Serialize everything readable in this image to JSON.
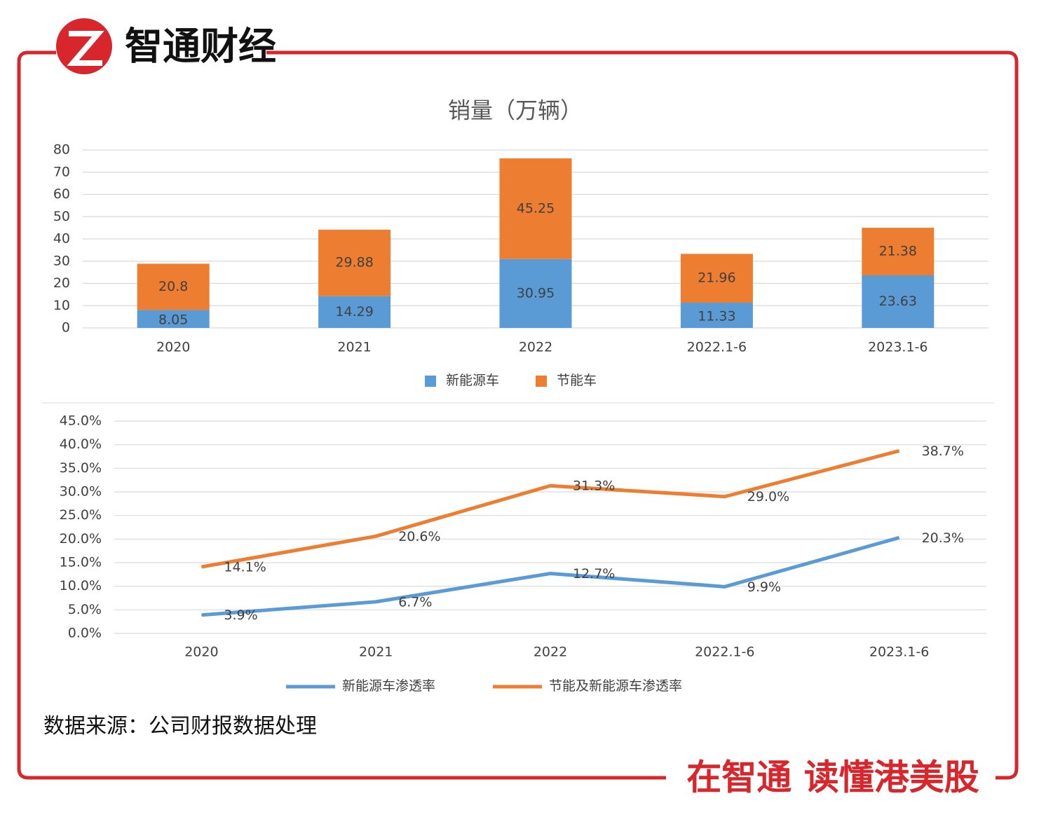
{
  "brand": "智通财经",
  "source": "数据来源：公司财报数据处理",
  "slogan": "在智通 读懂港美股",
  "chart_data": [
    {
      "type": "bar",
      "stacked": true,
      "title": "销量（万辆）",
      "categories": [
        "2020",
        "2021",
        "2022",
        "2022.1-6",
        "2023.1-6"
      ],
      "series": [
        {
          "name": "新能源车",
          "color": "#5b9bd5",
          "values": [
            8.05,
            14.29,
            30.95,
            11.33,
            23.63
          ]
        },
        {
          "name": "节能车",
          "color": "#ed7d31",
          "values": [
            20.8,
            29.88,
            45.25,
            21.96,
            21.38
          ]
        }
      ],
      "ylim": [
        0,
        80
      ],
      "yticks": [
        0,
        10,
        20,
        30,
        40,
        50,
        60,
        70,
        80
      ],
      "grid": true
    },
    {
      "type": "line",
      "categories": [
        "2020",
        "2021",
        "2022",
        "2022.1-6",
        "2023.1-6"
      ],
      "series": [
        {
          "name": "新能源车渗透率",
          "color": "#5b9bd5",
          "values": [
            3.9,
            6.7,
            12.7,
            9.9,
            20.3
          ],
          "value_labels": [
            "3.9%",
            "6.7%",
            "12.7%",
            "9.9%",
            "20.3%"
          ]
        },
        {
          "name": "节能及新能源车渗透率",
          "color": "#ed7d31",
          "values": [
            14.1,
            20.6,
            31.3,
            29.0,
            38.7
          ],
          "value_labels": [
            "14.1%",
            "20.6%",
            "31.3%",
            "29.0%",
            "38.7%"
          ]
        }
      ],
      "ylim": [
        0,
        45
      ],
      "yticks": [
        {
          "value": 0,
          "label": "0.0%"
        },
        {
          "value": 5,
          "label": "5.0%"
        },
        {
          "value": 10,
          "label": "10.0%"
        },
        {
          "value": 15,
          "label": "15.0%"
        },
        {
          "value": 20,
          "label": "20.0%"
        },
        {
          "value": 25,
          "label": "25.0%"
        },
        {
          "value": 30,
          "label": "30.0%"
        },
        {
          "value": 35,
          "label": "35.0%"
        },
        {
          "value": 40,
          "label": "40.0%"
        },
        {
          "value": 45,
          "label": "45.0%"
        }
      ],
      "grid": true
    }
  ]
}
